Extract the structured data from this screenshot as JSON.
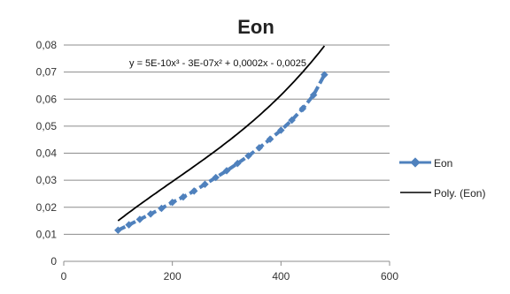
{
  "chart_data": {
    "type": "scatter",
    "title": "Eon",
    "xlabel": "",
    "ylabel": "",
    "xlim": [
      0,
      600
    ],
    "ylim": [
      0,
      0.08
    ],
    "x_ticks": [
      0,
      200,
      400,
      600
    ],
    "x_tick_labels": [
      "0",
      "200",
      "400",
      "600"
    ],
    "y_ticks": [
      0,
      0.01,
      0.02,
      0.03,
      0.04,
      0.05,
      0.06,
      0.07,
      0.08
    ],
    "y_tick_labels": [
      "0",
      "0,01",
      "0,02",
      "0,03",
      "0,04",
      "0,05",
      "0,06",
      "0,07",
      "0,08"
    ],
    "grid": "horizontal",
    "legend_position": "right",
    "trendline_equation": "y = 5E-10x³ - 3E-07x² + 0,0002x - 0,0025",
    "series": [
      {
        "name": "Eon",
        "color": "#4f81bd",
        "marker": "diamond",
        "x": [
          100,
          120,
          140,
          160,
          180,
          200,
          220,
          240,
          260,
          280,
          300,
          320,
          340,
          360,
          380,
          400,
          420,
          440,
          460,
          480
        ],
        "y": [
          0.0115,
          0.0135,
          0.0155,
          0.0175,
          0.0196,
          0.0218,
          0.0238,
          0.026,
          0.0285,
          0.031,
          0.0335,
          0.0362,
          0.039,
          0.042,
          0.0452,
          0.0485,
          0.0522,
          0.0565,
          0.0615,
          0.069
        ]
      },
      {
        "name": "Poly. (Eon)",
        "color": "#000000",
        "trendline": "polynomial",
        "coefficients": [
          -0.0025,
          0.0002,
          -3e-07,
          5e-10
        ],
        "x_range": [
          100,
          480
        ]
      }
    ]
  }
}
